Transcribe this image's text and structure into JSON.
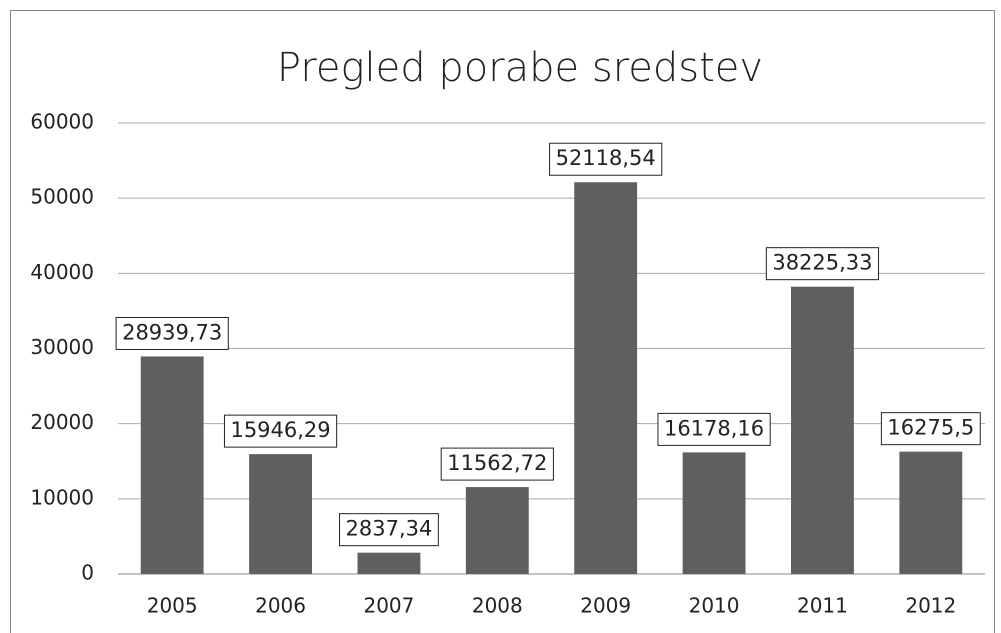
{
  "chart_data": {
    "type": "bar",
    "title": "Pregled porabe sredstev",
    "categories": [
      "2005",
      "2006",
      "2007",
      "2008",
      "2009",
      "2010",
      "2011",
      "2012"
    ],
    "values": [
      28939.73,
      15946.29,
      2837.34,
      11562.72,
      52118.54,
      16178.16,
      38225.33,
      16275.5
    ],
    "value_labels": [
      "28939,73",
      "15946,29",
      "2837,34",
      "11562,72",
      "52118,54",
      "16178,16",
      "38225,33",
      "16275,5"
    ],
    "color": "#5f5e60",
    "ylim": [
      0,
      60000
    ],
    "yticks": [
      0,
      10000,
      20000,
      30000,
      40000,
      50000,
      60000
    ],
    "grid": true
  }
}
